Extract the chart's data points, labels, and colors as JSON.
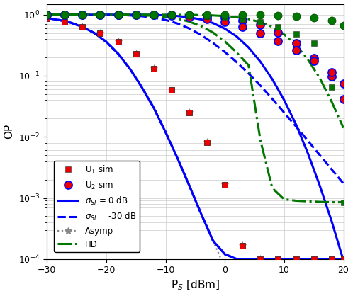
{
  "xlabel": "P_S [dBm]",
  "ylabel": "OP",
  "xlim": [
    -30,
    20
  ],
  "ylim": [
    0.0001,
    1.5
  ],
  "x_ticks": [
    -30,
    -20,
    -10,
    0,
    10,
    20
  ],
  "colors": {
    "blue": "#0000FF",
    "red": "#EE0000",
    "green": "#007700",
    "gray": "#888888",
    "darkgray": "#555555"
  },
  "sim_x": [
    -30,
    -27,
    -24,
    -21,
    -18,
    -15,
    -12,
    -9,
    -6,
    -3,
    0,
    3,
    6,
    9,
    12,
    15,
    18,
    20
  ],
  "curve_s0_U1_x": [
    -30,
    -28,
    -26,
    -24,
    -22,
    -20,
    -18,
    -16,
    -14,
    -12,
    -10,
    -8,
    -6,
    -4,
    -2,
    0,
    2,
    4,
    6,
    8,
    10,
    12,
    14,
    16,
    18,
    20
  ],
  "curve_s0_U1_y": [
    0.88,
    0.82,
    0.74,
    0.63,
    0.5,
    0.36,
    0.23,
    0.13,
    0.065,
    0.03,
    0.012,
    0.0045,
    0.0016,
    0.00055,
    0.0002,
    0.00012,
    0.0001,
    0.0001,
    0.0001,
    0.0001,
    0.0001,
    0.0001,
    0.0001,
    0.0001,
    0.0001,
    0.0001
  ],
  "curve_s0_U2_x": [
    -30,
    -28,
    -26,
    -24,
    -22,
    -20,
    -18,
    -16,
    -14,
    -12,
    -10,
    -8,
    -6,
    -4,
    -2,
    0,
    2,
    4,
    6,
    8,
    10,
    12,
    14,
    16,
    18,
    20
  ],
  "curve_s0_U2_y": [
    0.999,
    0.999,
    0.999,
    0.999,
    0.999,
    0.999,
    0.998,
    0.997,
    0.994,
    0.988,
    0.975,
    0.95,
    0.905,
    0.835,
    0.73,
    0.59,
    0.44,
    0.29,
    0.17,
    0.088,
    0.04,
    0.016,
    0.0054,
    0.0016,
    0.00042,
    9.5e-05
  ],
  "curve_s30_U1_x": [
    -30,
    -28,
    -26,
    -24,
    -22,
    -20,
    -18,
    -16,
    -14,
    -12,
    -10,
    -8,
    -6,
    -4,
    -2,
    0,
    2,
    4,
    6,
    8,
    10,
    12,
    14,
    16,
    18,
    20
  ],
  "curve_s30_U1_y": [
    0.88,
    0.82,
    0.74,
    0.63,
    0.5,
    0.36,
    0.23,
    0.13,
    0.065,
    0.03,
    0.012,
    0.0045,
    0.0016,
    0.00055,
    0.0002,
    0.00012,
    0.0001,
    0.0001,
    0.0001,
    0.0001,
    0.0001,
    0.0001,
    0.0001,
    0.0001,
    0.0001,
    0.0001
  ],
  "curve_s30_U2_x": [
    -30,
    -28,
    -26,
    -24,
    -22,
    -20,
    -18,
    -16,
    -14,
    -12,
    -10,
    -8,
    -6,
    -4,
    -2,
    0,
    2,
    4,
    6,
    8,
    10,
    12,
    14,
    16,
    18,
    20
  ],
  "curve_s30_U2_y": [
    0.999,
    0.999,
    0.999,
    0.999,
    0.998,
    0.995,
    0.988,
    0.973,
    0.945,
    0.895,
    0.82,
    0.718,
    0.595,
    0.465,
    0.345,
    0.245,
    0.167,
    0.109,
    0.069,
    0.042,
    0.025,
    0.0148,
    0.00865,
    0.00505,
    0.00295,
    0.00172
  ],
  "asymp_U1_x": [
    -30,
    -28,
    -26,
    -24,
    -22,
    -20,
    -18,
    -16,
    -14,
    -12,
    -10,
    -8,
    -6,
    -4,
    -2,
    0,
    2,
    4,
    6,
    8,
    10,
    12,
    14,
    16,
    18,
    20
  ],
  "asymp_U1_y": [
    0.88,
    0.82,
    0.74,
    0.63,
    0.5,
    0.36,
    0.23,
    0.13,
    0.065,
    0.03,
    0.012,
    0.0045,
    0.0016,
    0.00055,
    0.0002,
    7.2e-05,
    2.5e-05,
    8.7e-06,
    3.1e-06,
    1.1e-06,
    3.8e-07,
    1.35e-07,
    4.8e-08,
    1.7e-08,
    6e-09,
    2e-09
  ],
  "asymp_U2_x": [
    -30,
    -28,
    -26,
    -24,
    -22,
    -20,
    -18,
    -16,
    -14,
    -12,
    -10,
    -8,
    -6,
    -4,
    -2,
    0,
    2,
    4,
    6,
    8,
    10,
    12,
    14,
    16,
    18,
    20
  ],
  "asymp_U2_y": [
    0.999,
    0.999,
    0.999,
    0.999,
    0.999,
    0.999,
    0.998,
    0.997,
    0.994,
    0.988,
    0.975,
    0.95,
    0.905,
    0.835,
    0.73,
    0.59,
    0.44,
    0.29,
    0.17,
    0.088,
    0.04,
    0.016,
    0.0054,
    0.0016,
    0.00042,
    9.5e-05
  ],
  "hd_U1_x": [
    -30,
    -28,
    -26,
    -24,
    -22,
    -20,
    -18,
    -16,
    -14,
    -12,
    -10,
    -8,
    -6,
    -4,
    -2,
    0,
    2,
    4,
    6,
    8,
    10,
    12,
    14,
    16,
    18,
    20
  ],
  "hd_U1_y": [
    0.999,
    0.999,
    0.999,
    0.999,
    0.998,
    0.997,
    0.994,
    0.988,
    0.977,
    0.957,
    0.921,
    0.86,
    0.77,
    0.65,
    0.51,
    0.365,
    0.24,
    0.149,
    0.0088,
    0.00145,
    0.00095,
    0.0009,
    0.00088,
    0.00086,
    0.00085,
    0.00085
  ],
  "hd_U2_x": [
    -30,
    -28,
    -26,
    -24,
    -22,
    -20,
    -18,
    -16,
    -14,
    -12,
    -10,
    -8,
    -6,
    -4,
    -2,
    0,
    2,
    4,
    6,
    8,
    10,
    12,
    14,
    16,
    18,
    20
  ],
  "hd_U2_y": [
    0.9999,
    0.9999,
    0.9999,
    0.9999,
    0.9999,
    0.9999,
    0.9998,
    0.9997,
    0.9995,
    0.999,
    0.998,
    0.996,
    0.992,
    0.985,
    0.972,
    0.948,
    0.908,
    0.845,
    0.755,
    0.63,
    0.475,
    0.32,
    0.185,
    0.092,
    0.038,
    0.014
  ],
  "sim_U1_s0_y": [
    0.88,
    0.76,
    0.63,
    0.5,
    0.36,
    0.23,
    0.13,
    0.058,
    0.025,
    0.0082,
    0.00165,
    0.000165,
    0.0001,
    0.0001,
    0.0001,
    0.0001,
    0.0001,
    0.0001
  ],
  "sim_U2_s0_y": [
    0.999,
    0.999,
    0.999,
    0.999,
    0.998,
    0.997,
    0.994,
    0.987,
    0.972,
    0.942,
    0.891,
    0.806,
    0.677,
    0.51,
    0.338,
    0.195,
    0.0965,
    0.0412
  ],
  "sim_U1_s30_y": [
    0.88,
    0.76,
    0.63,
    0.5,
    0.36,
    0.23,
    0.13,
    0.058,
    0.025,
    0.0082,
    0.00165,
    0.000165,
    0.0001,
    0.0001,
    0.0001,
    0.0001,
    0.0001,
    0.0001
  ],
  "sim_U2_s30_y": [
    0.999,
    0.999,
    0.999,
    0.999,
    0.997,
    0.993,
    0.981,
    0.958,
    0.916,
    0.848,
    0.751,
    0.63,
    0.499,
    0.371,
    0.261,
    0.175,
    0.113,
    0.074
  ],
  "sim_hd_U1_y": [
    0.999,
    0.999,
    0.999,
    0.999,
    0.998,
    0.997,
    0.994,
    0.987,
    0.974,
    0.95,
    0.912,
    0.848,
    0.753,
    0.628,
    0.486,
    0.342,
    0.065,
    0.00085
  ],
  "sim_hd_U2_y": [
    0.9999,
    0.9999,
    0.9999,
    0.9999,
    0.9999,
    0.9999,
    0.9998,
    0.9996,
    0.9992,
    0.9982,
    0.9962,
    0.9921,
    0.9842,
    0.97,
    0.944,
    0.896,
    0.811,
    0.673
  ],
  "sim_asymp_U1_y": [
    0.88,
    0.76,
    0.63,
    0.5,
    0.36,
    0.23,
    0.13,
    0.058,
    0.025,
    0.0082,
    0.00165,
    0.000165,
    0.0001,
    2.9e-05,
    8.5e-06,
    2.5e-06,
    7.5e-07,
    2.2e-07
  ],
  "sim_asymp_U2_y": [
    0.999,
    0.999,
    0.999,
    0.999,
    0.998,
    0.997,
    0.994,
    0.987,
    0.972,
    0.942,
    0.891,
    0.806,
    0.677,
    0.51,
    0.338,
    0.195,
    0.0965,
    0.0412
  ]
}
